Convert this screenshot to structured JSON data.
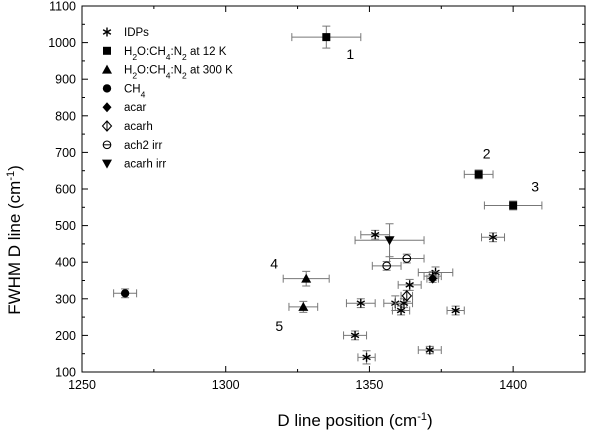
{
  "chart_data": {
    "type": "scatter",
    "title": "",
    "xlabel": "D line position (cm",
    "xlabel_sup": "-1",
    "xlabel_end": ")",
    "ylabel": "FWHM D line (cm",
    "ylabel_sup": "-1",
    "ylabel_end": ")",
    "xlim": [
      1250,
      1425
    ],
    "ylim": [
      100,
      1100
    ],
    "xticks": [
      "1250",
      "1300",
      "1350",
      "1400"
    ],
    "yticks": [
      "100",
      "200",
      "300",
      "400",
      "500",
      "600",
      "700",
      "800",
      "900",
      "1000",
      "1100"
    ],
    "grid": false,
    "legend_position": "top-left",
    "legend": [
      {
        "marker": "asterisk",
        "label": "IDPs"
      },
      {
        "marker": "square",
        "label": "H2O:CH4:N2 at 12 K",
        "rich": [
          "H",
          "2",
          "O:CH",
          "4",
          ":N",
          "2",
          " at 12 K"
        ]
      },
      {
        "marker": "triangle-up",
        "label": "H2O:CH4:N2 at 300 K",
        "rich": [
          "H",
          "2",
          "O:CH",
          "4",
          ":N",
          "2",
          " at 300 K"
        ]
      },
      {
        "marker": "circle",
        "label": "CH4",
        "rich": [
          "CH",
          "4"
        ]
      },
      {
        "marker": "diamond",
        "label": "acar"
      },
      {
        "marker": "diamond-open",
        "label": "acarh"
      },
      {
        "marker": "circle-open",
        "label": "ach2 irr"
      },
      {
        "marker": "triangle-down",
        "label": "acarh irr"
      }
    ],
    "series": [
      {
        "marker": "asterisk",
        "points": [
          {
            "x": 1352,
            "y": 475,
            "xerr": 5,
            "yerr": 12
          },
          {
            "x": 1393,
            "y": 468,
            "xerr": 4,
            "yerr": 12
          },
          {
            "x": 1373,
            "y": 372,
            "xerr": 6,
            "yerr": 15
          },
          {
            "x": 1372,
            "y": 362,
            "xerr": 3,
            "yerr": 12
          },
          {
            "x": 1364,
            "y": 338,
            "xerr": 4,
            "yerr": 15
          },
          {
            "x": 1347,
            "y": 288,
            "xerr": 5,
            "yerr": 12
          },
          {
            "x": 1359,
            "y": 288,
            "xerr": 4,
            "yerr": 20
          },
          {
            "x": 1362,
            "y": 288,
            "xerr": 3,
            "yerr": 12
          },
          {
            "x": 1361,
            "y": 268,
            "xerr": 3,
            "yerr": 12
          },
          {
            "x": 1380,
            "y": 268,
            "xerr": 3,
            "yerr": 12
          },
          {
            "x": 1345,
            "y": 200,
            "xerr": 4,
            "yerr": 12
          },
          {
            "x": 1371,
            "y": 160,
            "xerr": 4,
            "yerr": 10
          },
          {
            "x": 1349,
            "y": 140,
            "xerr": 3,
            "yerr": 18
          }
        ]
      },
      {
        "marker": "square",
        "points": [
          {
            "x": 1335,
            "y": 1015,
            "xerr": 12,
            "yerr": 30,
            "label": "1"
          },
          {
            "x": 1388,
            "y": 640,
            "xerr": 5,
            "yerr": 12,
            "label": "2"
          },
          {
            "x": 1400,
            "y": 555,
            "xerr": 10,
            "yerr": 12,
            "label": "3"
          }
        ]
      },
      {
        "marker": "triangle-up",
        "points": [
          {
            "x": 1328,
            "y": 355,
            "xerr": 8,
            "yerr": 20,
            "label": "4"
          },
          {
            "x": 1327,
            "y": 278,
            "xerr": 5,
            "yerr": 15,
            "label": "5"
          }
        ]
      },
      {
        "marker": "circle",
        "points": [
          {
            "x": 1265,
            "y": 315,
            "xerr": 4,
            "yerr": 12
          }
        ]
      },
      {
        "marker": "diamond",
        "points": [
          {
            "x": 1372,
            "y": 355,
            "xerr": 2,
            "yerr": 10
          }
        ]
      },
      {
        "marker": "diamond-open",
        "points": [
          {
            "x": 1363,
            "y": 308,
            "xerr": 2,
            "yerr": 15
          }
        ]
      },
      {
        "marker": "circle-open",
        "points": [
          {
            "x": 1356,
            "y": 390,
            "xerr": 5,
            "yerr": 12
          },
          {
            "x": 1363,
            "y": 410,
            "xerr": 6,
            "yerr": 12
          }
        ]
      },
      {
        "marker": "triangle-down",
        "points": [
          {
            "x": 1357,
            "y": 460,
            "xerr": 12,
            "yerr": 45
          }
        ]
      }
    ]
  }
}
